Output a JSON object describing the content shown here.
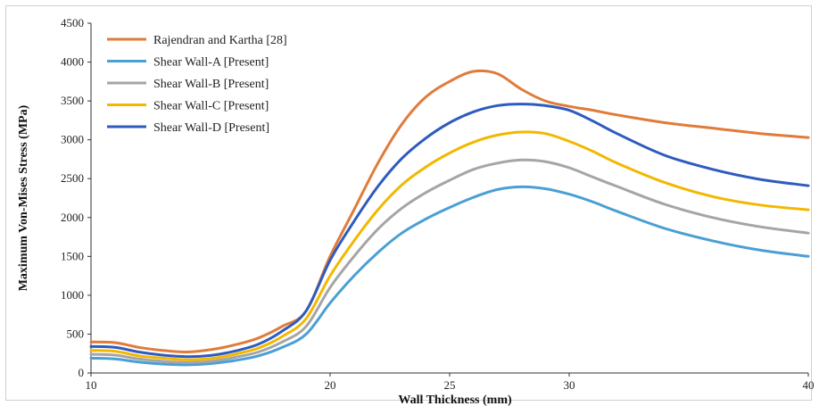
{
  "chart_data": {
    "type": "line",
    "xlabel": "Wall Thickness (mm)",
    "ylabel": "Maximum Von-Mises Stress (MPa)",
    "xlim": [
      10,
      40
    ],
    "ylim": [
      0,
      4500
    ],
    "xticks": [
      10,
      20,
      25,
      30,
      40
    ],
    "yticks": [
      0,
      500,
      1000,
      1500,
      2000,
      2500,
      3000,
      3500,
      4000,
      4500
    ],
    "grid": false,
    "legend_position": "top-left",
    "series": [
      {
        "name": "Rajendran and Kartha [28]",
        "color": "#E07B39",
        "points": [
          [
            10,
            400
          ],
          [
            11,
            390
          ],
          [
            12,
            330
          ],
          [
            13,
            290
          ],
          [
            14,
            270
          ],
          [
            15,
            300
          ],
          [
            16,
            360
          ],
          [
            17,
            450
          ],
          [
            18,
            600
          ],
          [
            19,
            800
          ],
          [
            20,
            1500
          ],
          [
            21,
            2100
          ],
          [
            22,
            2700
          ],
          [
            23,
            3200
          ],
          [
            24,
            3550
          ],
          [
            25,
            3750
          ],
          [
            26,
            3880
          ],
          [
            27,
            3850
          ],
          [
            28,
            3650
          ],
          [
            29,
            3500
          ],
          [
            30,
            3430
          ],
          [
            31,
            3380
          ],
          [
            32,
            3320
          ],
          [
            34,
            3220
          ],
          [
            36,
            3150
          ],
          [
            38,
            3080
          ],
          [
            40,
            3030
          ]
        ]
      },
      {
        "name": "Shear Wall-A [Present]",
        "color": "#4A9FD5",
        "points": [
          [
            10,
            190
          ],
          [
            11,
            180
          ],
          [
            12,
            140
          ],
          [
            13,
            115
          ],
          [
            14,
            105
          ],
          [
            15,
            120
          ],
          [
            16,
            160
          ],
          [
            17,
            220
          ],
          [
            18,
            330
          ],
          [
            19,
            500
          ],
          [
            20,
            900
          ],
          [
            21,
            1250
          ],
          [
            22,
            1550
          ],
          [
            23,
            1800
          ],
          [
            24,
            1980
          ],
          [
            25,
            2130
          ],
          [
            26,
            2260
          ],
          [
            27,
            2360
          ],
          [
            28,
            2395
          ],
          [
            29,
            2370
          ],
          [
            30,
            2300
          ],
          [
            31,
            2200
          ],
          [
            32,
            2080
          ],
          [
            34,
            1860
          ],
          [
            36,
            1700
          ],
          [
            38,
            1580
          ],
          [
            40,
            1500
          ]
        ]
      },
      {
        "name": "Shear Wall-B [Present]",
        "color": "#A5A5A5",
        "points": [
          [
            10,
            240
          ],
          [
            11,
            230
          ],
          [
            12,
            180
          ],
          [
            13,
            150
          ],
          [
            14,
            135
          ],
          [
            15,
            150
          ],
          [
            16,
            200
          ],
          [
            17,
            270
          ],
          [
            18,
            400
          ],
          [
            19,
            600
          ],
          [
            20,
            1100
          ],
          [
            21,
            1500
          ],
          [
            22,
            1850
          ],
          [
            23,
            2120
          ],
          [
            24,
            2320
          ],
          [
            25,
            2480
          ],
          [
            26,
            2620
          ],
          [
            27,
            2700
          ],
          [
            28,
            2740
          ],
          [
            29,
            2720
          ],
          [
            30,
            2640
          ],
          [
            31,
            2520
          ],
          [
            32,
            2400
          ],
          [
            34,
            2170
          ],
          [
            36,
            2000
          ],
          [
            38,
            1880
          ],
          [
            40,
            1800
          ]
        ]
      },
      {
        "name": "Shear Wall-C [Present]",
        "color": "#F2B800",
        "points": [
          [
            10,
            290
          ],
          [
            11,
            280
          ],
          [
            12,
            220
          ],
          [
            13,
            190
          ],
          [
            14,
            170
          ],
          [
            15,
            185
          ],
          [
            16,
            240
          ],
          [
            17,
            320
          ],
          [
            18,
            470
          ],
          [
            19,
            700
          ],
          [
            20,
            1250
          ],
          [
            21,
            1700
          ],
          [
            22,
            2100
          ],
          [
            23,
            2420
          ],
          [
            24,
            2650
          ],
          [
            25,
            2830
          ],
          [
            26,
            2970
          ],
          [
            27,
            3060
          ],
          [
            28,
            3100
          ],
          [
            29,
            3080
          ],
          [
            30,
            2980
          ],
          [
            31,
            2850
          ],
          [
            32,
            2700
          ],
          [
            34,
            2450
          ],
          [
            36,
            2270
          ],
          [
            38,
            2160
          ],
          [
            40,
            2100
          ]
        ]
      },
      {
        "name": "Shear Wall-D [Present]",
        "color": "#2E5BBE",
        "points": [
          [
            10,
            340
          ],
          [
            11,
            330
          ],
          [
            12,
            270
          ],
          [
            13,
            230
          ],
          [
            14,
            210
          ],
          [
            15,
            225
          ],
          [
            16,
            280
          ],
          [
            17,
            370
          ],
          [
            18,
            540
          ],
          [
            19,
            800
          ],
          [
            20,
            1450
          ],
          [
            21,
            1950
          ],
          [
            22,
            2400
          ],
          [
            23,
            2760
          ],
          [
            24,
            3020
          ],
          [
            25,
            3220
          ],
          [
            26,
            3360
          ],
          [
            27,
            3440
          ],
          [
            28,
            3460
          ],
          [
            29,
            3440
          ],
          [
            30,
            3380
          ],
          [
            31,
            3240
          ],
          [
            32,
            3080
          ],
          [
            34,
            2800
          ],
          [
            36,
            2620
          ],
          [
            38,
            2490
          ],
          [
            40,
            2410
          ]
        ]
      }
    ]
  }
}
